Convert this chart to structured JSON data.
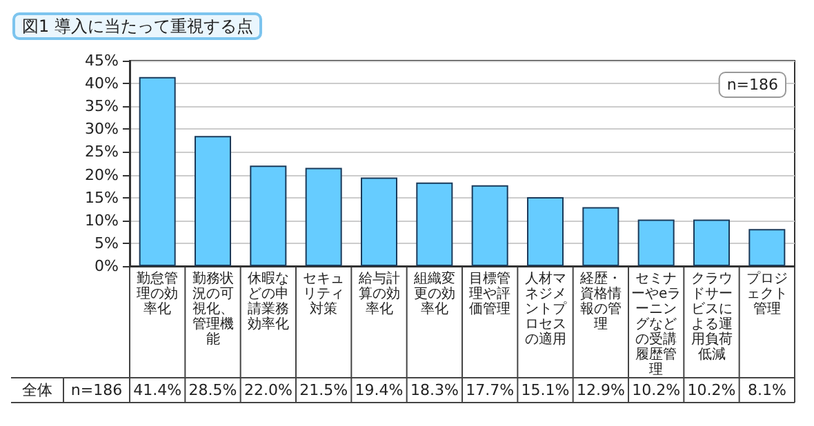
{
  "chart_data": {
    "type": "bar",
    "title": "図1 導入に当たって重視する点",
    "categories": [
      "勤怠管理の効率化",
      "勤務状況の可視化、管理機能",
      "休暇などの申請業務効率化",
      "セキュリティ対策",
      "給与計算の効率化",
      "組織変更の効率化",
      "目標管理や評価管理",
      "人材マネジメントプロセスの適用",
      "経歴・資格情報の管理",
      "セミナーやeラーニングなどの受講履歴管理",
      "クラウドサービスによる運用負荷低減",
      "プロジェクト管理"
    ],
    "values": [
      41.4,
      28.5,
      22.0,
      21.5,
      19.4,
      18.3,
      17.7,
      15.1,
      12.9,
      10.2,
      10.2,
      8.1
    ],
    "value_labels": [
      "41.4%",
      "28.5%",
      "22.0%",
      "21.5%",
      "19.4%",
      "18.3%",
      "17.7%",
      "15.1%",
      "12.9%",
      "10.2%",
      "10.2%",
      "8.1%"
    ],
    "color": "#66ccff",
    "ylim": [
      0,
      45
    ],
    "yticks": [
      {
        "value": 0,
        "label": "0%"
      },
      {
        "value": 5,
        "label": "5%"
      },
      {
        "value": 10,
        "label": "10%"
      },
      {
        "value": 15,
        "label": "15%"
      },
      {
        "value": 20,
        "label": "20%"
      },
      {
        "value": 25,
        "label": "25%"
      },
      {
        "value": 30,
        "label": "30%"
      },
      {
        "value": 35,
        "label": "35%"
      },
      {
        "value": 40,
        "label": "40%"
      },
      {
        "value": 45,
        "label": "45%"
      }
    ],
    "grid": "y",
    "annotations": [
      "n=186",
      "全体",
      "n=186"
    ]
  }
}
